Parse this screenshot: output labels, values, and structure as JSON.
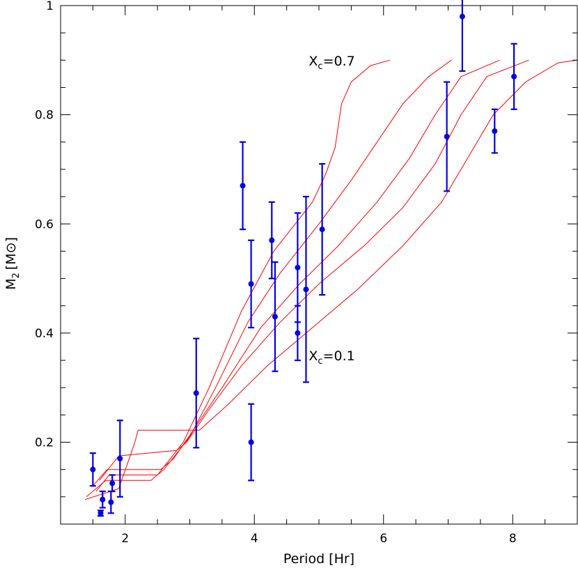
{
  "chart_data": {
    "type": "scatter",
    "xlabel": "Period [Hr]",
    "ylabel_main": "M",
    "ylabel_sub": "2",
    "ylabel_unit": "[M",
    "ylabel_unit_sym": "⊙",
    "ylabel_close": "]",
    "xlim": [
      1,
      9
    ],
    "ylim": [
      0.05,
      1.0
    ],
    "x_ticks": [
      2,
      4,
      6,
      8
    ],
    "y_ticks": [
      0.2,
      0.4,
      0.6,
      0.8,
      1
    ],
    "y_tick_labels": [
      "0.2",
      "0.4",
      "0.6",
      "0.8",
      "1"
    ],
    "x_minor_step": 0.5,
    "y_minor_step": 0.05,
    "grid": false,
    "annotations": [
      {
        "main": "X",
        "sub": "c",
        "rest": "=0.7",
        "x": 5.2,
        "y": 0.89
      },
      {
        "main": "X",
        "sub": "c",
        "rest": "=0.1",
        "x": 5.2,
        "y": 0.35
      }
    ],
    "points": [
      {
        "x": 1.5,
        "y": 0.15,
        "err": 0.03
      },
      {
        "x": 1.62,
        "y": 0.07,
        "err": 0.005
      },
      {
        "x": 1.65,
        "y": 0.095,
        "err": 0.015
      },
      {
        "x": 1.78,
        "y": 0.09,
        "err": 0.02
      },
      {
        "x": 1.8,
        "y": 0.125,
        "err": 0.015
      },
      {
        "x": 1.92,
        "y": 0.17,
        "err": 0.07
      },
      {
        "x": 3.1,
        "y": 0.29,
        "err": 0.1
      },
      {
        "x": 3.82,
        "y": 0.67,
        "err": 0.08
      },
      {
        "x": 3.95,
        "y": 0.49,
        "err": 0.08
      },
      {
        "x": 3.95,
        "y": 0.2,
        "err": 0.07
      },
      {
        "x": 4.27,
        "y": 0.57,
        "err": 0.07
      },
      {
        "x": 4.32,
        "y": 0.43,
        "err": 0.1
      },
      {
        "x": 4.67,
        "y": 0.52,
        "err": 0.1
      },
      {
        "x": 4.67,
        "y": 0.4,
        "err": 0.05
      },
      {
        "x": 4.8,
        "y": 0.48,
        "err": 0.17
      },
      {
        "x": 5.05,
        "y": 0.59,
        "err": 0.12
      },
      {
        "x": 6.98,
        "y": 0.76,
        "err": 0.1
      },
      {
        "x": 7.22,
        "y": 0.98,
        "err": 0.1
      },
      {
        "x": 7.72,
        "y": 0.77,
        "err": 0.04
      },
      {
        "x": 8.02,
        "y": 0.87,
        "err": 0.06
      }
    ],
    "curves": [
      {
        "name": "X_c=0.7",
        "points": [
          [
            1.55,
            0.11
          ],
          [
            1.75,
            0.14
          ],
          [
            2.3,
            0.14
          ],
          [
            2.5,
            0.14
          ],
          [
            2.9,
            0.2
          ],
          [
            3.3,
            0.3
          ],
          [
            3.8,
            0.44
          ],
          [
            4.3,
            0.55
          ],
          [
            4.9,
            0.64
          ],
          [
            5.1,
            0.69
          ],
          [
            5.25,
            0.74
          ],
          [
            5.35,
            0.82
          ],
          [
            5.5,
            0.86
          ],
          [
            5.8,
            0.89
          ],
          [
            6.1,
            0.9
          ]
        ]
      },
      {
        "name": "",
        "points": [
          [
            1.4,
            0.1
          ],
          [
            1.7,
            0.13
          ],
          [
            2.4,
            0.13
          ],
          [
            2.6,
            0.15
          ],
          [
            3.0,
            0.21
          ],
          [
            3.4,
            0.3
          ],
          [
            3.9,
            0.42
          ],
          [
            4.4,
            0.51
          ],
          [
            5.0,
            0.6
          ],
          [
            5.5,
            0.68
          ],
          [
            5.9,
            0.75
          ],
          [
            6.3,
            0.82
          ],
          [
            6.7,
            0.87
          ],
          [
            7.05,
            0.9
          ]
        ]
      },
      {
        "name": "",
        "points": [
          [
            1.5,
            0.12
          ],
          [
            1.72,
            0.15
          ],
          [
            2.55,
            0.15
          ],
          [
            2.75,
            0.17
          ],
          [
            3.1,
            0.23
          ],
          [
            3.5,
            0.3
          ],
          [
            4.1,
            0.41
          ],
          [
            4.7,
            0.49
          ],
          [
            5.3,
            0.56
          ],
          [
            5.9,
            0.64
          ],
          [
            6.4,
            0.72
          ],
          [
            6.8,
            0.8
          ],
          [
            7.2,
            0.87
          ],
          [
            7.8,
            0.9
          ]
        ]
      },
      {
        "name": "",
        "points": [
          [
            1.6,
            0.13
          ],
          [
            1.9,
            0.175
          ],
          [
            2.8,
            0.185
          ],
          [
            2.95,
            0.2
          ],
          [
            3.3,
            0.26
          ],
          [
            3.8,
            0.34
          ],
          [
            4.4,
            0.42
          ],
          [
            5.0,
            0.49
          ],
          [
            5.7,
            0.56
          ],
          [
            6.3,
            0.63
          ],
          [
            6.8,
            0.71
          ],
          [
            7.2,
            0.8
          ],
          [
            7.6,
            0.87
          ],
          [
            8.25,
            0.9
          ]
        ]
      },
      {
        "name": "X_c=0.1",
        "points": [
          [
            1.38,
            0.095
          ],
          [
            1.9,
            0.115
          ],
          [
            2.15,
            0.2
          ],
          [
            2.2,
            0.222
          ],
          [
            3.15,
            0.222
          ],
          [
            3.6,
            0.27
          ],
          [
            4.2,
            0.34
          ],
          [
            4.9,
            0.41
          ],
          [
            5.6,
            0.48
          ],
          [
            6.3,
            0.56
          ],
          [
            6.9,
            0.64
          ],
          [
            7.3,
            0.72
          ],
          [
            7.7,
            0.8
          ],
          [
            8.2,
            0.86
          ],
          [
            8.7,
            0.895
          ],
          [
            9.0,
            0.9
          ]
        ]
      }
    ],
    "colors": {
      "points": "#0000e6",
      "curves": "#ff0000",
      "axes": "#000000"
    }
  }
}
